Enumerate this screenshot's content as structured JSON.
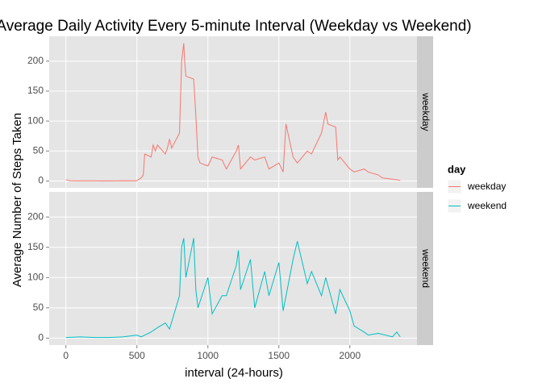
{
  "chart_data": {
    "type": "line",
    "title": "Average Daily Activity Every 5-minute Interval (Weekday vs Weekend)",
    "x_label": "interval (24-hours)",
    "y_label": "Average Number of Steps Taken",
    "legend_title": "day",
    "xlim": [
      -117.75,
      2472.75
    ],
    "ylim": [
      -11.5,
      241.5
    ],
    "xticks": [
      0,
      500,
      1000,
      1500,
      2000
    ],
    "yticks": [
      0,
      50,
      100,
      150,
      200
    ],
    "grid": true,
    "series": [
      {
        "name": "weekday",
        "color": "#F8766D",
        "x": [
          0,
          30,
          100,
          200,
          300,
          400,
          500,
          515,
          530,
          545,
          555,
          600,
          615,
          630,
          645,
          700,
          715,
          730,
          745,
          800,
          815,
          830,
          835,
          845,
          900,
          915,
          930,
          945,
          1000,
          1030,
          1100,
          1130,
          1200,
          1215,
          1230,
          1300,
          1330,
          1400,
          1430,
          1500,
          1530,
          1550,
          1600,
          1630,
          1700,
          1730,
          1800,
          1830,
          1845,
          1900,
          1915,
          1930,
          2000,
          2030,
          2100,
          2130,
          2200,
          2230,
          2300,
          2355
        ],
        "values": [
          2,
          0.5,
          0.3,
          0.2,
          0.1,
          0.5,
          0.3,
          3,
          5,
          10,
          45,
          40,
          60,
          50,
          60,
          45,
          55,
          70,
          55,
          80,
          200,
          230,
          205,
          175,
          170,
          110,
          40,
          30,
          25,
          40,
          35,
          20,
          50,
          60,
          20,
          40,
          35,
          40,
          20,
          30,
          15,
          95,
          40,
          30,
          50,
          45,
          80,
          115,
          95,
          90,
          35,
          40,
          20,
          15,
          20,
          15,
          10,
          5,
          3,
          1
        ]
      },
      {
        "name": "weekend",
        "color": "#00BFC4",
        "x": [
          0,
          100,
          200,
          300,
          400,
          500,
          530,
          600,
          630,
          700,
          730,
          800,
          815,
          830,
          845,
          900,
          915,
          930,
          1000,
          1030,
          1100,
          1130,
          1200,
          1215,
          1230,
          1300,
          1330,
          1400,
          1430,
          1500,
          1530,
          1600,
          1630,
          1700,
          1730,
          1800,
          1830,
          1900,
          1930,
          2000,
          2030,
          2100,
          2130,
          2200,
          2300,
          2330,
          2355
        ],
        "values": [
          1,
          2,
          1,
          1,
          2,
          5,
          2,
          10,
          15,
          25,
          15,
          70,
          150,
          165,
          100,
          165,
          80,
          50,
          100,
          40,
          70,
          70,
          120,
          145,
          80,
          130,
          50,
          110,
          70,
          125,
          45,
          130,
          160,
          90,
          110,
          70,
          100,
          40,
          80,
          45,
          20,
          10,
          5,
          8,
          2,
          10,
          2
        ]
      }
    ]
  }
}
